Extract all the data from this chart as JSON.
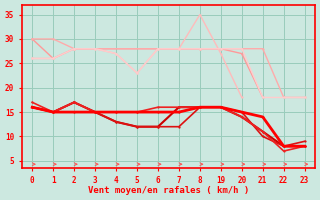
{
  "bg_color": "#cce8e0",
  "grid_color": "#99ccbb",
  "axis_color": "#ff0000",
  "tick_color": "#ff0000",
  "xlabel": "Vent moyen/en rafales ( km/h )",
  "xlabel_color": "#ff0000",
  "ylim": [
    3.5,
    37
  ],
  "x_labels": [
    "0",
    "1",
    "2",
    "3",
    "4",
    "5",
    "6",
    "7",
    "8",
    "19",
    "20",
    "21",
    "22",
    "23"
  ],
  "y_ticks": [
    5,
    10,
    15,
    20,
    25,
    30,
    35
  ],
  "light_lines": [
    {
      "xi": [
        0,
        1,
        2,
        8,
        9,
        10,
        11
      ],
      "y": [
        30,
        26,
        28,
        28,
        28,
        27,
        18
      ],
      "color": "#ff9999",
      "lw": 1.0
    },
    {
      "xi": [
        0,
        1,
        2,
        8,
        9,
        10,
        11,
        12,
        13
      ],
      "y": [
        30,
        30,
        28,
        28,
        28,
        28,
        28,
        18,
        18
      ],
      "color": "#ffaaaa",
      "lw": 1.0
    },
    {
      "xi": [
        0,
        1,
        2,
        3,
        4,
        5,
        6,
        7,
        8,
        9,
        10
      ],
      "y": [
        26,
        26,
        28,
        28,
        27,
        23,
        28,
        28,
        35,
        27,
        18
      ],
      "color": "#ffbbbb",
      "lw": 1.0
    },
    {
      "xi": [
        0,
        1,
        2,
        3,
        4,
        5,
        6,
        7,
        8,
        9,
        10,
        11,
        12,
        13
      ],
      "y": [
        26,
        26,
        28,
        28,
        27,
        23,
        28,
        28,
        28,
        28,
        28,
        18,
        18,
        18
      ],
      "color": "#ffcccc",
      "lw": 1.0
    }
  ],
  "dark_lines": [
    {
      "xi": [
        0,
        1,
        2,
        3,
        4,
        5,
        6,
        7,
        8,
        9,
        10,
        11,
        12,
        13
      ],
      "y": [
        16,
        15,
        17,
        15,
        13,
        12,
        12,
        16,
        16,
        16,
        14,
        11,
        8,
        8
      ],
      "color": "#cc0000",
      "lw": 1.5
    },
    {
      "xi": [
        0,
        1,
        2,
        3,
        4,
        5,
        6,
        7,
        8,
        9,
        10,
        11,
        12,
        13
      ],
      "y": [
        16,
        15,
        17,
        15,
        13,
        12,
        12,
        12,
        16,
        16,
        15,
        10,
        8,
        9
      ],
      "color": "#dd1111",
      "lw": 1.2
    },
    {
      "xi": [
        0,
        1,
        2,
        3,
        4,
        5,
        6,
        7,
        8,
        9,
        10,
        11,
        12,
        13
      ],
      "y": [
        17,
        15,
        17,
        15,
        15,
        15,
        16,
        16,
        16,
        16,
        14,
        11,
        7,
        8
      ],
      "color": "#ee2222",
      "lw": 1.2
    },
    {
      "xi": [
        0,
        1,
        2,
        3,
        4,
        5,
        6,
        7,
        8,
        9,
        10,
        11,
        12,
        13
      ],
      "y": [
        16,
        15,
        15,
        15,
        15,
        15,
        15,
        15,
        16,
        16,
        15,
        14,
        8,
        8
      ],
      "color": "#ff0000",
      "lw": 2.0
    }
  ],
  "arrow_xs_idx": [
    0,
    1,
    2,
    3,
    4,
    5,
    6,
    7,
    8,
    9,
    10,
    11,
    12,
    13
  ],
  "arrow_color": "#ff5555"
}
